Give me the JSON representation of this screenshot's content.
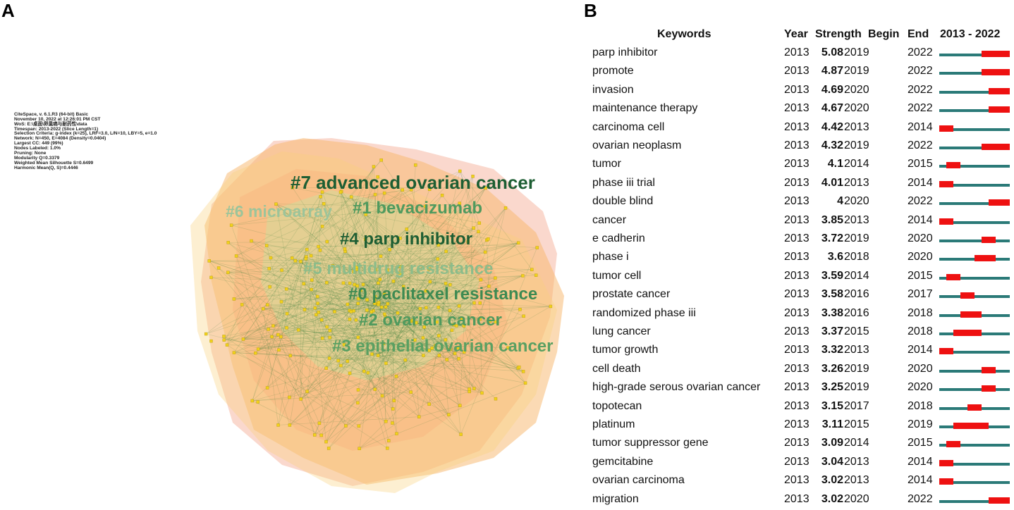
{
  "panel_a": {
    "letter": "A",
    "info_lines": [
      "CiteSpace, v. 6.1.R3 (64-bit) Basic",
      "November 10, 2022 at 12:26:01 PM CST",
      "WoS: E:\\桌面\\卵巢癌与耐药性\\data",
      "Timespan: 2013-2022 (Slice Length=1)",
      "Selection Criteria: g-index (k=25), LRF=3.0, L/N=10, LBY=5, e=1.0",
      "Network: N=450, E=4084 (Density=0.0404)",
      "Largest CC: 449 (99%)",
      "Nodes Labeled: 1.0%",
      "Pruning: None",
      "Modularity Q=0.3379",
      "Weighted Mean Silhouette S=0.6499",
      "Harmonic Mean(Q, S)=0.4446"
    ],
    "clusters": [
      {
        "label": "#7 advanced ovarian cancer",
        "color": "#1d5e33"
      },
      {
        "label": "#1 bevacizumab",
        "color": "#4f9a5e"
      },
      {
        "label": "#6 microarray",
        "color": "#9cc49a"
      },
      {
        "label": "#4 parp inhibitor",
        "color": "#1d5e33"
      },
      {
        "label": "#5 multidrug resistance",
        "color": "#8cbc8a"
      },
      {
        "label": "#0 paclitaxel resistance",
        "color": "#3d8a52"
      },
      {
        "label": "#2 ovarian cancer",
        "color": "#4f9a5e"
      },
      {
        "label": "#3 epithelial ovarian cancer",
        "color": "#5aa062"
      }
    ],
    "colors": {
      "node": "#f2d21a",
      "edge": "#2f7a3a",
      "hull_orange": "#f7b56a",
      "hull_pink": "#f3a890",
      "hull_yellow": "#f9d07a"
    }
  },
  "panel_b": {
    "letter": "B",
    "headers": {
      "keywords": "Keywords",
      "year": "Year",
      "strength": "Strength",
      "begin": "Begin",
      "end": "End",
      "range": "2013 - 2022"
    },
    "colors": {
      "bar": "#2b7a78",
      "burst": "#ee1111"
    },
    "chart_data": {
      "type": "table",
      "timeline": [
        2013,
        2022
      ],
      "rows": [
        {
          "keyword": "parp inhibitor",
          "year": "2013",
          "strength": "5.08",
          "begin": "2019",
          "end": "2022"
        },
        {
          "keyword": "promote",
          "year": "2013",
          "strength": "4.87",
          "begin": "2019",
          "end": "2022"
        },
        {
          "keyword": "invasion",
          "year": "2013",
          "strength": "4.69",
          "begin": "2020",
          "end": "2022"
        },
        {
          "keyword": "maintenance therapy",
          "year": "2013",
          "strength": "4.67",
          "begin": "2020",
          "end": "2022"
        },
        {
          "keyword": "carcinoma cell",
          "year": "2013",
          "strength": "4.42",
          "begin": "2013",
          "end": "2014"
        },
        {
          "keyword": "ovarian neoplasm",
          "year": "2013",
          "strength": "4.32",
          "begin": "2019",
          "end": "2022"
        },
        {
          "keyword": "tumor",
          "year": "2013",
          "strength": "4.1",
          "begin": "2014",
          "end": "2015"
        },
        {
          "keyword": "phase iii trial",
          "year": "2013",
          "strength": "4.01",
          "begin": "2013",
          "end": "2014"
        },
        {
          "keyword": "double blind",
          "year": "2013",
          "strength": "4",
          "begin": "2020",
          "end": "2022"
        },
        {
          "keyword": "cancer",
          "year": "2013",
          "strength": "3.85",
          "begin": "2013",
          "end": "2014"
        },
        {
          "keyword": "e cadherin",
          "year": "2013",
          "strength": "3.72",
          "begin": "2019",
          "end": "2020"
        },
        {
          "keyword": "phase i",
          "year": "2013",
          "strength": "3.6",
          "begin": "2018",
          "end": "2020"
        },
        {
          "keyword": "tumor cell",
          "year": "2013",
          "strength": "3.59",
          "begin": "2014",
          "end": "2015"
        },
        {
          "keyword": "prostate cancer",
          "year": "2013",
          "strength": "3.58",
          "begin": "2016",
          "end": "2017"
        },
        {
          "keyword": "randomized phase iii",
          "year": "2013",
          "strength": "3.38",
          "begin": "2016",
          "end": "2018"
        },
        {
          "keyword": "lung cancer",
          "year": "2013",
          "strength": "3.37",
          "begin": "2015",
          "end": "2018"
        },
        {
          "keyword": "tumor growth",
          "year": "2013",
          "strength": "3.32",
          "begin": "2013",
          "end": "2014"
        },
        {
          "keyword": "cell death",
          "year": "2013",
          "strength": "3.26",
          "begin": "2019",
          "end": "2020"
        },
        {
          "keyword": "high-grade serous ovarian cancer",
          "year": "2013",
          "strength": "3.25",
          "begin": "2019",
          "end": "2020"
        },
        {
          "keyword": "topotecan",
          "year": "2013",
          "strength": "3.15",
          "begin": "2017",
          "end": "2018"
        },
        {
          "keyword": "platinum",
          "year": "2013",
          "strength": "3.11",
          "begin": "2015",
          "end": "2019"
        },
        {
          "keyword": "tumor suppressor gene",
          "year": "2013",
          "strength": "3.09",
          "begin": "2014",
          "end": "2015"
        },
        {
          "keyword": "gemcitabine",
          "year": "2013",
          "strength": "3.04",
          "begin": "2013",
          "end": "2014"
        },
        {
          "keyword": "ovarian carcinoma",
          "year": "2013",
          "strength": "3.02",
          "begin": "2013",
          "end": "2014"
        },
        {
          "keyword": "migration",
          "year": "2013",
          "strength": "3.02",
          "begin": "2020",
          "end": "2022"
        }
      ]
    }
  }
}
